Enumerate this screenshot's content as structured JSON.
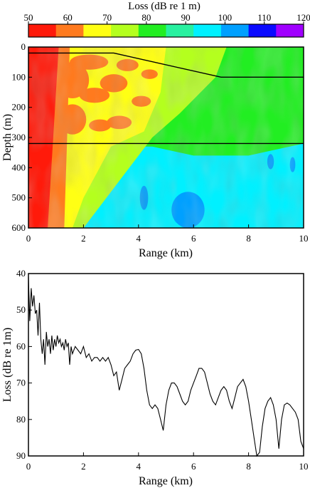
{
  "chart_data": [
    {
      "type": "heatmap",
      "title": "Loss (dB re 1 m)",
      "xlabel": "Range (km)",
      "ylabel": "Depth (m)",
      "xlim": [
        0,
        10
      ],
      "ylim": [
        600,
        0
      ],
      "x_ticks": [
        0,
        2,
        4,
        6,
        8,
        10
      ],
      "y_ticks": [
        0,
        100,
        200,
        300,
        400,
        500,
        600
      ],
      "colorbar": {
        "ticks": [
          50,
          60,
          70,
          80,
          90,
          100,
          110,
          120
        ],
        "colors": [
          "#ff1a0a",
          "#ff7a1e",
          "#ffff14",
          "#b4ff1e",
          "#22ee22",
          "#28f0a0",
          "#00f0ff",
          "#00a0ff",
          "#0a0aff",
          "#a000ff"
        ]
      },
      "lines": [
        {
          "x": [
            0,
            3.1,
            7,
            10
          ],
          "y": [
            20,
            20,
            100,
            100
          ]
        },
        {
          "x": [
            0,
            10
          ],
          "y": [
            320,
            320
          ]
        }
      ]
    },
    {
      "type": "line",
      "xlabel": "Range (km)",
      "ylabel": "Loss (dB re 1m)",
      "xlim": [
        0,
        10
      ],
      "ylim": [
        90,
        40
      ],
      "x_ticks": [
        0,
        2,
        4,
        6,
        8,
        10
      ],
      "y_ticks": [
        40,
        50,
        60,
        70,
        80,
        90
      ],
      "series": [
        {
          "x": [
            0,
            0.05,
            0.1,
            0.15,
            0.2,
            0.25,
            0.3,
            0.35,
            0.4,
            0.45,
            0.5,
            0.55,
            0.6,
            0.65,
            0.7,
            0.75,
            0.8,
            0.85,
            0.9,
            0.95,
            1.0,
            1.05,
            1.1,
            1.15,
            1.2,
            1.25,
            1.3,
            1.35,
            1.4,
            1.45,
            1.5,
            1.55,
            1.6,
            1.7,
            1.8,
            1.9,
            2.0,
            2.1,
            2.2,
            2.3,
            2.4,
            2.5,
            2.6,
            2.7,
            2.8,
            2.9,
            3.0,
            3.1,
            3.2,
            3.3,
            3.4,
            3.5,
            3.6,
            3.7,
            3.8,
            3.9,
            4.0,
            4.1,
            4.2,
            4.3,
            4.4,
            4.5,
            4.6,
            4.7,
            4.8,
            4.9,
            5.0,
            5.1,
            5.2,
            5.3,
            5.4,
            5.5,
            5.6,
            5.7,
            5.8,
            5.9,
            6.0,
            6.1,
            6.2,
            6.3,
            6.4,
            6.5,
            6.6,
            6.7,
            6.8,
            6.9,
            7.0,
            7.1,
            7.2,
            7.3,
            7.4,
            7.5,
            7.6,
            7.7,
            7.8,
            7.9,
            8.0,
            8.1,
            8.2,
            8.3,
            8.4,
            8.5,
            8.6,
            8.7,
            8.8,
            8.9,
            9.0,
            9.1,
            9.2,
            9.3,
            9.4,
            9.5,
            9.6,
            9.7,
            9.8,
            9.9,
            10.0
          ],
          "y": [
            41,
            53,
            44,
            49,
            46,
            51,
            50,
            57,
            48,
            58,
            62,
            58,
            65,
            56,
            60,
            58,
            62,
            57,
            61,
            58,
            60,
            57,
            59,
            58,
            60,
            59,
            61,
            58,
            60,
            59,
            65,
            60,
            62,
            60,
            61,
            62,
            60,
            63,
            62,
            64,
            63,
            63,
            64,
            63,
            64,
            63,
            65,
            68,
            67,
            72,
            69,
            66,
            65,
            64,
            62,
            61,
            60.8,
            62,
            66,
            72,
            76,
            77,
            76,
            77,
            80,
            83,
            76,
            72,
            70,
            70,
            71,
            73,
            75,
            76,
            75,
            72,
            70,
            68,
            66,
            66,
            67,
            70,
            73,
            75,
            76,
            74,
            72,
            71,
            72,
            75,
            77,
            74,
            71,
            70,
            69,
            71,
            75,
            80,
            85,
            90,
            89,
            82,
            77,
            75,
            74,
            76,
            80,
            88,
            80,
            76,
            75.5,
            76,
            77,
            78,
            80,
            86,
            88
          ]
        }
      ]
    }
  ]
}
